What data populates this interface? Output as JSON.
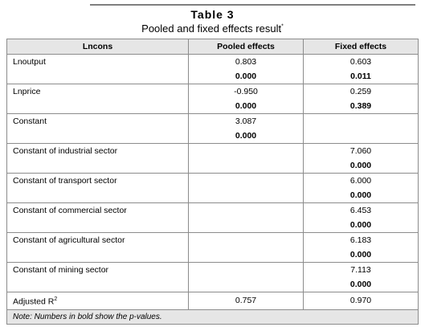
{
  "title": "Table 3",
  "subtitle": "Pooled and fixed effects result",
  "subtitle_mark": "*",
  "headers": [
    "Lncons",
    "Pooled effects",
    "Fixed effects"
  ],
  "rows": [
    {
      "label": "Lnoutput",
      "pooled": "0.803",
      "pooled_p": "0.000",
      "fixed": "0.603",
      "fixed_p": "0.011"
    },
    {
      "label": "Lnprice",
      "pooled": "-0.950",
      "pooled_p": "0.000",
      "fixed": "0.259",
      "fixed_p": "0.389"
    },
    {
      "label": "Constant",
      "pooled": "3.087",
      "pooled_p": "0.000",
      "fixed": "",
      "fixed_p": ""
    },
    {
      "label": "Constant of industrial sector",
      "pooled": "",
      "pooled_p": "",
      "fixed": "7.060",
      "fixed_p": "0.000"
    },
    {
      "label": "Constant of transport sector",
      "pooled": "",
      "pooled_p": "",
      "fixed": "6.000",
      "fixed_p": "0.000"
    },
    {
      "label": "Constant of commercial sector",
      "pooled": "",
      "pooled_p": "",
      "fixed": "6.453",
      "fixed_p": "0.000"
    },
    {
      "label": "Constant of agricultural sector",
      "pooled": "",
      "pooled_p": "",
      "fixed": "6.183",
      "fixed_p": "0.000"
    },
    {
      "label": "Constant of mining sector",
      "pooled": "",
      "pooled_p": "",
      "fixed": "7.113",
      "fixed_p": "0.000"
    }
  ],
  "adjusted": {
    "label": "Adjusted R",
    "sup": "2",
    "pooled": "0.757",
    "fixed": "0.970"
  },
  "note": "Note: Numbers in bold show the p-values."
}
